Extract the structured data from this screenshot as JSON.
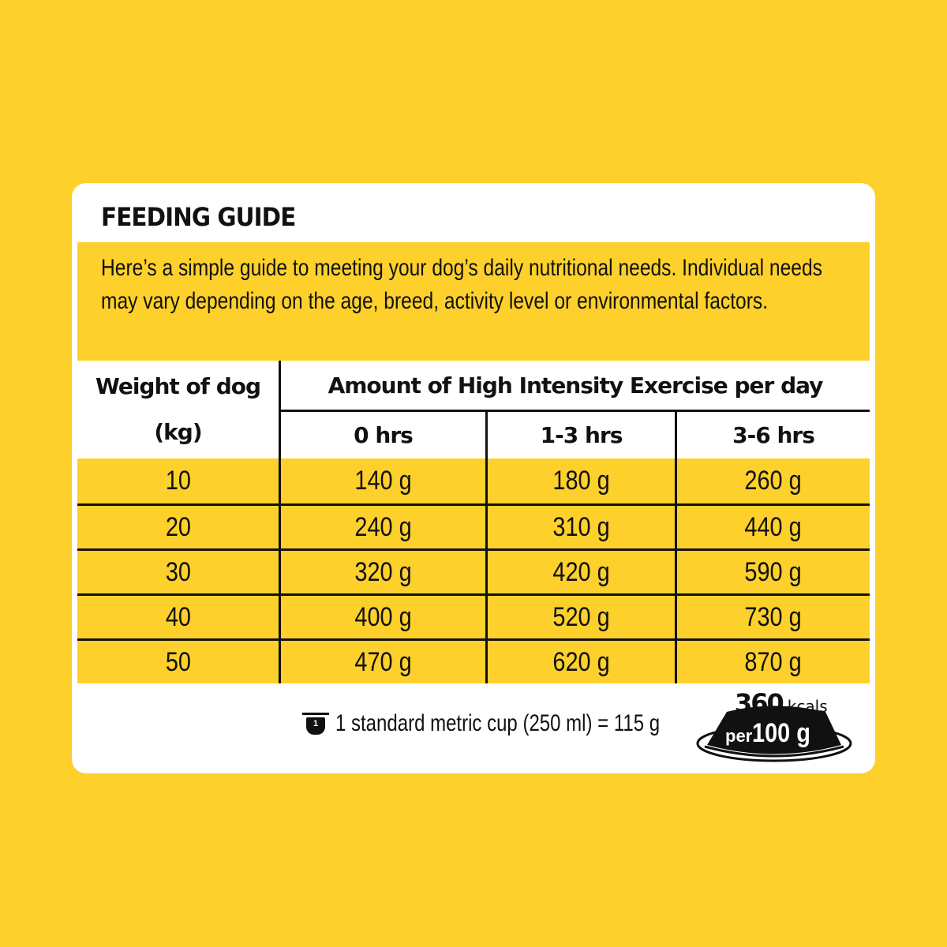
{
  "title": "FEEDING GUIDE",
  "intro": "Here’s a simple guide to meeting your dog’s daily nutritional needs. Individual needs may vary depending on the age, breed, activity level or environmental factors.",
  "table": {
    "weight_header": "Weight of dog (kg)",
    "exercise_header": "Amount of High Intensity Exercise per day",
    "columns": [
      "0 hrs",
      "1-3 hrs",
      "3-6 hrs"
    ],
    "rows": [
      {
        "weight": "10",
        "values": [
          "140 g",
          "180 g",
          "260 g"
        ]
      },
      {
        "weight": "20",
        "values": [
          "240 g",
          "310 g",
          "440 g"
        ]
      },
      {
        "weight": "30",
        "values": [
          "320 g",
          "420 g",
          "590 g"
        ]
      },
      {
        "weight": "40",
        "values": [
          "400 g",
          "520 g",
          "730 g"
        ]
      },
      {
        "weight": "50",
        "values": [
          "470 g",
          "620 g",
          "870 g"
        ]
      }
    ]
  },
  "footer": {
    "cup_number": "1",
    "cup_note": "1 standard metric cup (250 ml) = 115 g",
    "kcal_value": "360",
    "kcal_unit": "kcals",
    "per_label": "per",
    "per_amount": "100 g"
  },
  "colors": {
    "background": "#FDD02B",
    "card": "#FFFFFF",
    "text": "#111111"
  }
}
